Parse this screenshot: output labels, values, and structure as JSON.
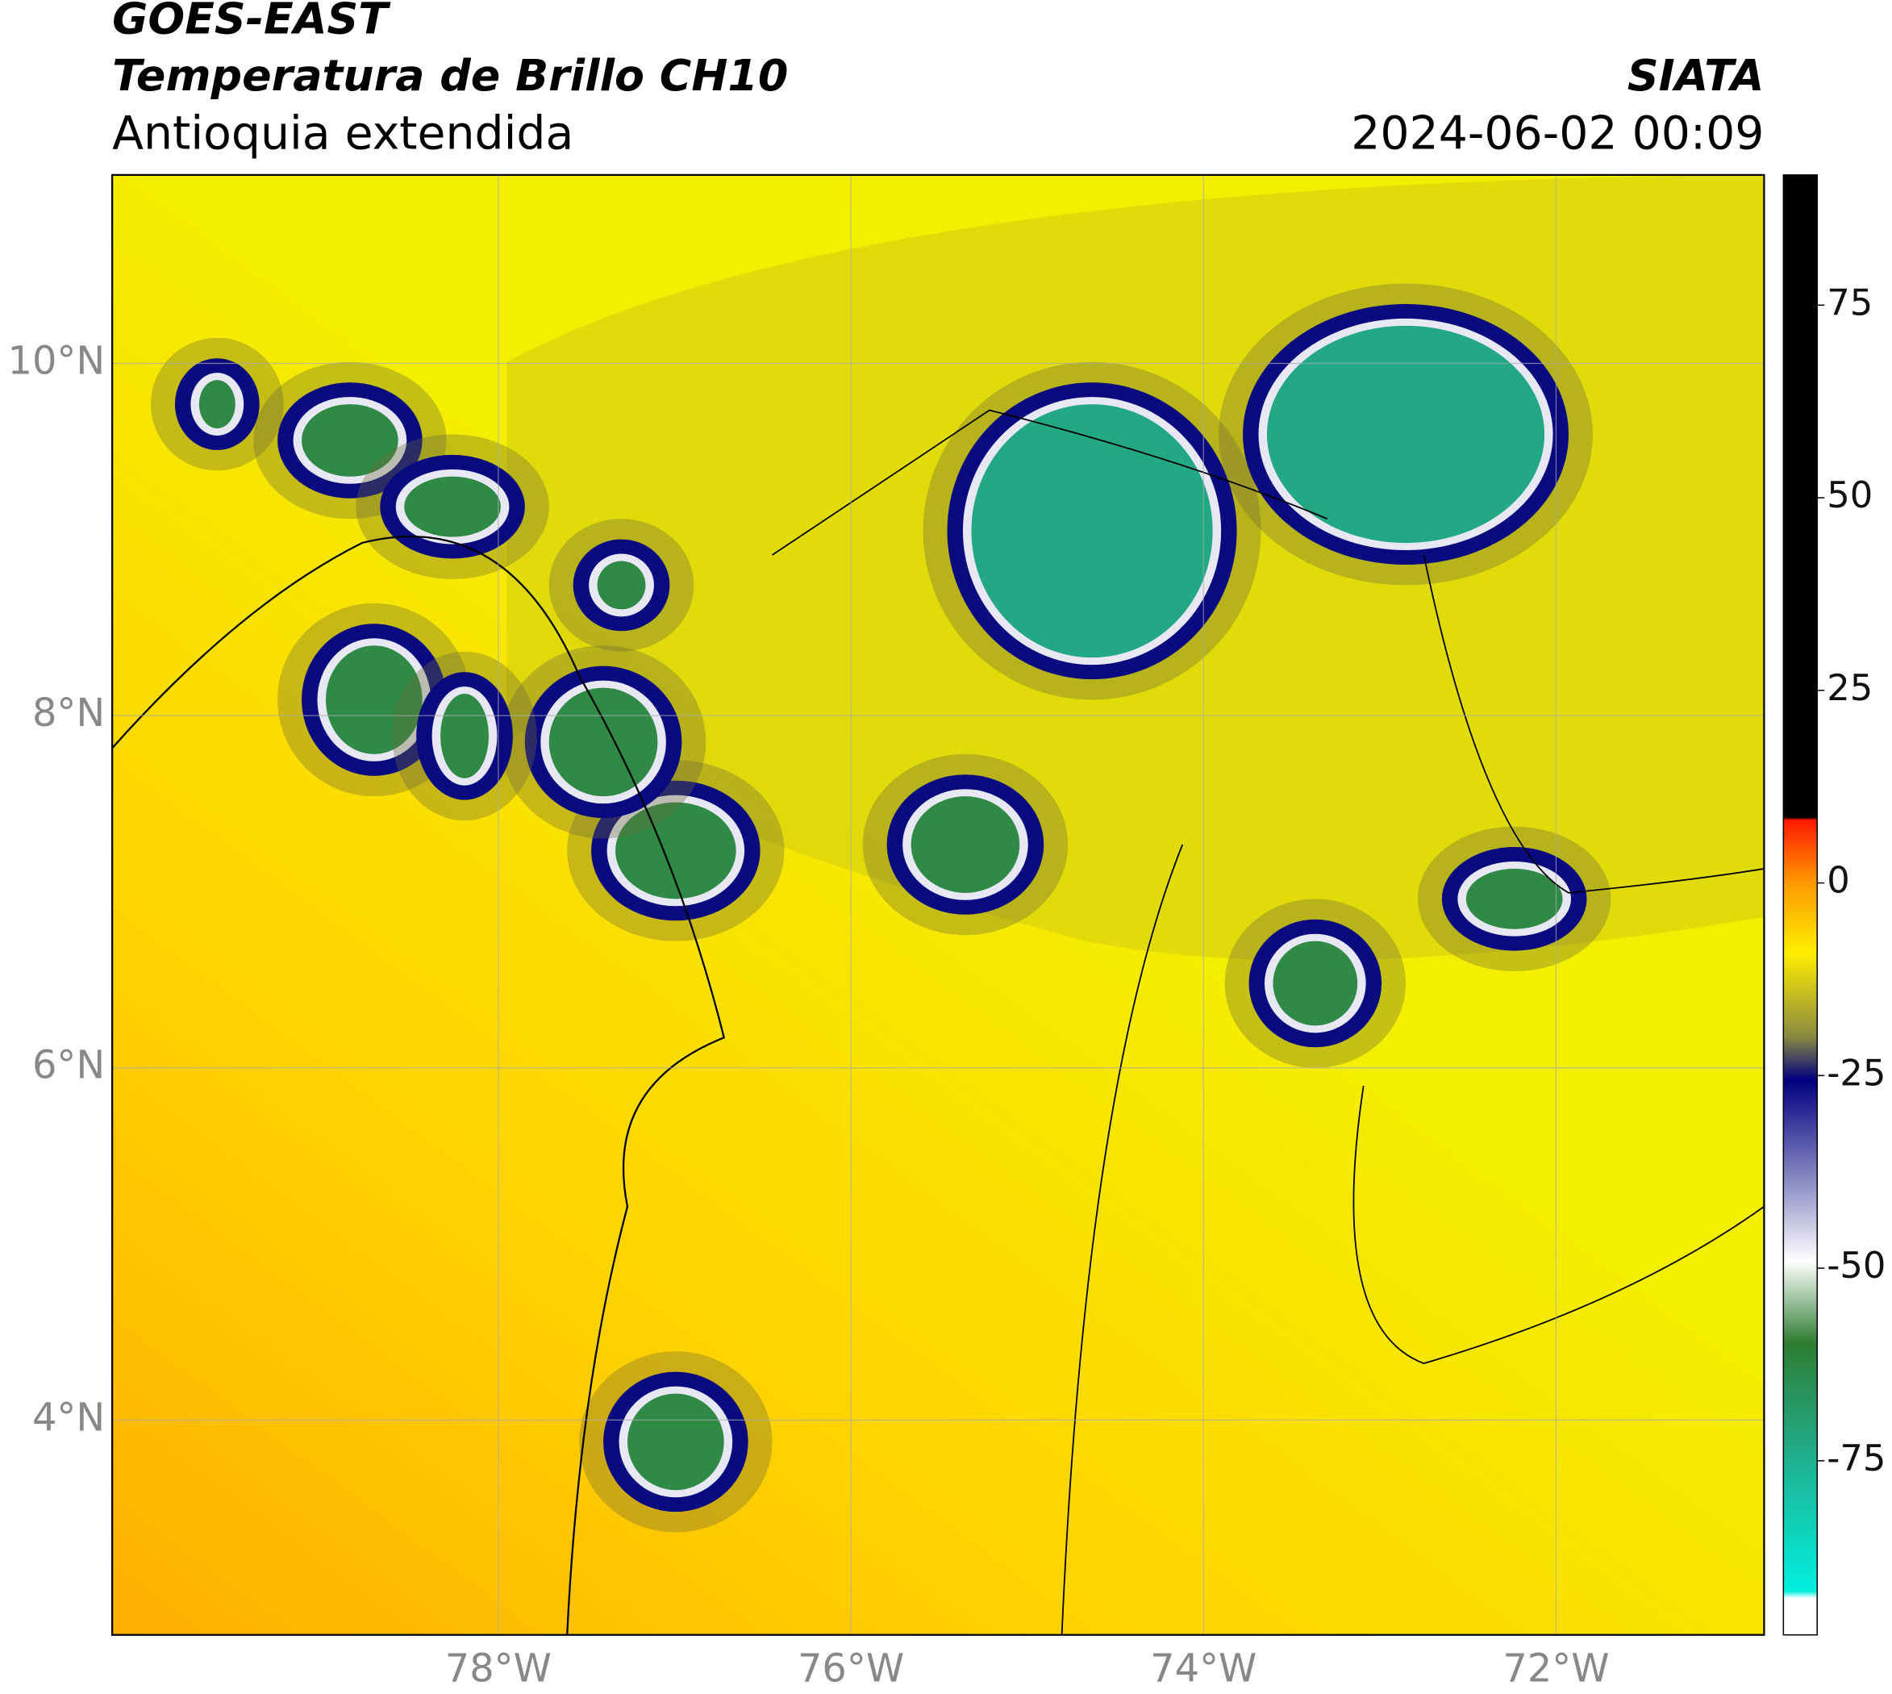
{
  "chart_data": {
    "type": "map",
    "title": "GOES-EAST",
    "subtitle": "Temperatura de Brillo CH10",
    "region": "Antioquia extendida",
    "source": "SIATA",
    "timestamp": "2024-06-02 00:09",
    "xlim": [
      -80.19,
      -70.82
    ],
    "ylim": [
      2.78,
      11.07
    ],
    "xticks": [
      {
        "value": -78,
        "label": "78°W"
      },
      {
        "value": -76,
        "label": "76°W"
      },
      {
        "value": -74,
        "label": "74°W"
      },
      {
        "value": -72,
        "label": "72°W"
      }
    ],
    "yticks": [
      {
        "value": 10,
        "label": "10°N"
      },
      {
        "value": 8,
        "label": "8°N"
      },
      {
        "value": 6,
        "label": "6°N"
      },
      {
        "value": 4,
        "label": "4°N"
      }
    ],
    "grid": true,
    "colorbar": {
      "lim": [
        -97.6,
        91.9
      ],
      "ticks": [
        75,
        50,
        25,
        0,
        -25,
        -50,
        -75
      ]
    }
  }
}
